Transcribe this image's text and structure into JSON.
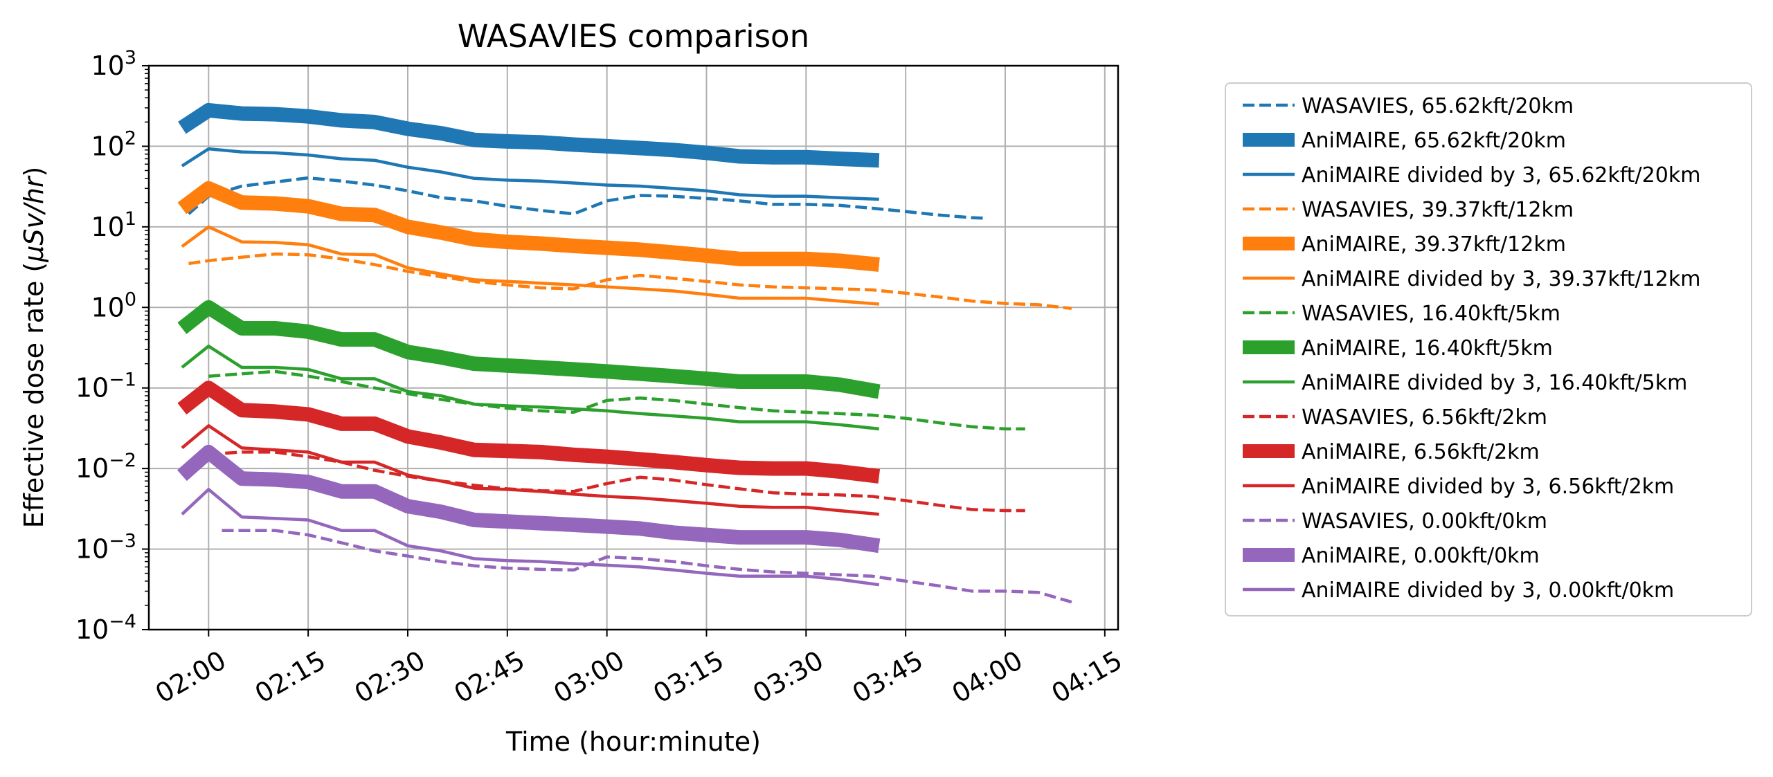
{
  "chart_data": {
    "type": "line",
    "title": "WASAVIES comparison",
    "xlabel": "Time (hour:minute)",
    "ylabel": "Effective dose rate (μSv/hr)",
    "ylabel_parts": [
      "Effective dose rate (",
      "μSv/hr",
      ")"
    ],
    "y_scale": "log",
    "ylim": [
      0.0001,
      1000
    ],
    "xlim": [
      "01:51",
      "04:17"
    ],
    "x_ticks": [
      "02:00",
      "02:15",
      "02:30",
      "02:45",
      "03:00",
      "03:15",
      "03:30",
      "03:45",
      "04:00",
      "04:15"
    ],
    "y_ticks": [
      {
        "value": 1000,
        "mantissa": "10",
        "exp": "3"
      },
      {
        "value": 100,
        "mantissa": "10",
        "exp": "2"
      },
      {
        "value": 10,
        "mantissa": "10",
        "exp": "1"
      },
      {
        "value": 1,
        "mantissa": "10",
        "exp": "0"
      },
      {
        "value": 0.1,
        "mantissa": "10",
        "exp": "−1"
      },
      {
        "value": 0.01,
        "mantissa": "10",
        "exp": "−2"
      },
      {
        "value": 0.001,
        "mantissa": "10",
        "exp": "−3"
      },
      {
        "value": 0.0001,
        "mantissa": "10",
        "exp": "−4"
      }
    ],
    "grid": true,
    "legend_position": "outside right",
    "series": [
      {
        "name": "WASAVIES, 65.62kft/20km",
        "color": "#1f77b4",
        "style": "dashed",
        "x": [
          "01:57",
          "02:00",
          "02:05",
          "02:10",
          "02:15",
          "02:20",
          "02:25",
          "02:30",
          "02:35",
          "02:40",
          "02:45",
          "02:50",
          "02:55",
          "03:00",
          "03:05",
          "03:10",
          "03:15",
          "03:20",
          "03:25",
          "03:30",
          "03:35",
          "03:40",
          "03:45",
          "03:50",
          "03:55",
          "03:57"
        ],
        "y": [
          14.5,
          24,
          32,
          36,
          40.5,
          37,
          33,
          28,
          23,
          21,
          18,
          16,
          14.5,
          21,
          24.5,
          24,
          22.5,
          21,
          19,
          19,
          18.5,
          17,
          15.5,
          14,
          13,
          12.8
        ]
      },
      {
        "name": "AniMAIRE, 65.62kft/20km",
        "color": "#1f77b4",
        "style": "thick",
        "x": [
          "01:56",
          "02:00",
          "02:05",
          "02:10",
          "02:15",
          "02:20",
          "02:25",
          "02:30",
          "02:35",
          "02:40",
          "02:45",
          "02:50",
          "02:55",
          "03:00",
          "03:05",
          "03:10",
          "03:15",
          "03:20",
          "03:25",
          "03:30",
          "03:35",
          "03:41"
        ],
        "y": [
          170,
          280,
          255,
          250,
          235,
          210,
          200,
          165,
          145,
          120,
          115,
          112,
          105,
          100,
          95,
          90,
          83,
          75,
          73,
          73,
          70,
          67
        ]
      },
      {
        "name": "AniMAIRE divided by 3, 65.62kft/20km",
        "color": "#1f77b4",
        "style": "solid",
        "x": [
          "01:56",
          "02:00",
          "02:05",
          "02:10",
          "02:15",
          "02:20",
          "02:25",
          "02:30",
          "02:35",
          "02:40",
          "02:45",
          "02:50",
          "02:55",
          "03:00",
          "03:05",
          "03:10",
          "03:15",
          "03:20",
          "03:25",
          "03:30",
          "03:35",
          "03:41"
        ],
        "y": [
          57,
          93,
          85,
          83,
          78,
          70,
          67,
          55,
          48,
          40,
          38,
          37,
          35,
          33,
          32,
          30,
          28,
          25,
          24,
          24,
          23,
          22
        ]
      },
      {
        "name": "WASAVIES, 39.37kft/12km",
        "color": "#ff7f0e",
        "style": "dashed",
        "x": [
          "01:57",
          "02:00",
          "02:05",
          "02:10",
          "02:15",
          "02:20",
          "02:25",
          "02:30",
          "02:35",
          "02:40",
          "02:45",
          "02:50",
          "02:55",
          "03:00",
          "03:05",
          "03:10",
          "03:15",
          "03:20",
          "03:25",
          "03:30",
          "03:35",
          "03:40",
          "03:45",
          "03:50",
          "03:55",
          "04:00",
          "04:05",
          "04:10"
        ],
        "y": [
          3.5,
          3.8,
          4.2,
          4.6,
          4.5,
          4.0,
          3.4,
          2.8,
          2.4,
          2.1,
          1.9,
          1.75,
          1.7,
          2.2,
          2.5,
          2.3,
          2.1,
          1.9,
          1.8,
          1.75,
          1.7,
          1.65,
          1.5,
          1.35,
          1.2,
          1.12,
          1.08,
          0.97
        ]
      },
      {
        "name": "AniMAIRE, 39.37kft/12km",
        "color": "#ff7f0e",
        "style": "thick",
        "x": [
          "01:56",
          "02:00",
          "02:05",
          "02:10",
          "02:15",
          "02:20",
          "02:25",
          "02:30",
          "02:35",
          "02:40",
          "02:45",
          "02:50",
          "02:55",
          "03:00",
          "03:05",
          "03:10",
          "03:15",
          "03:20",
          "03:25",
          "03:30",
          "03:35",
          "03:41"
        ],
        "y": [
          17,
          30,
          20,
          19.5,
          18,
          14.5,
          14,
          10,
          8.5,
          7,
          6.5,
          6.2,
          5.8,
          5.5,
          5.2,
          4.8,
          4.4,
          4.0,
          4.0,
          4.0,
          3.8,
          3.4
        ]
      },
      {
        "name": "AniMAIRE divided by 3, 39.37kft/12km",
        "color": "#ff7f0e",
        "style": "solid",
        "x": [
          "01:56",
          "02:00",
          "02:05",
          "02:10",
          "02:15",
          "02:20",
          "02:25",
          "02:30",
          "02:35",
          "02:40",
          "02:45",
          "02:50",
          "02:55",
          "03:00",
          "03:05",
          "03:10",
          "03:15",
          "03:20",
          "03:25",
          "03:30",
          "03:35",
          "03:41"
        ],
        "y": [
          5.7,
          10,
          6.5,
          6.4,
          6,
          4.6,
          4.5,
          3.1,
          2.6,
          2.2,
          2.1,
          2.0,
          1.9,
          1.8,
          1.7,
          1.6,
          1.45,
          1.3,
          1.3,
          1.3,
          1.2,
          1.1
        ]
      },
      {
        "name": "WASAVIES, 16.40kft/5km",
        "color": "#2ca02c",
        "style": "dashed",
        "x": [
          "02:00",
          "02:05",
          "02:10",
          "02:15",
          "02:20",
          "02:25",
          "02:30",
          "02:35",
          "02:40",
          "02:45",
          "02:50",
          "02:55",
          "03:00",
          "03:05",
          "03:10",
          "03:15",
          "03:20",
          "03:25",
          "03:30",
          "03:35",
          "03:40",
          "03:45",
          "03:50",
          "03:55",
          "04:00",
          "04:03"
        ],
        "y": [
          0.14,
          0.15,
          0.16,
          0.14,
          0.12,
          0.1,
          0.085,
          0.072,
          0.063,
          0.056,
          0.052,
          0.05,
          0.07,
          0.075,
          0.07,
          0.063,
          0.057,
          0.052,
          0.05,
          0.048,
          0.046,
          0.042,
          0.037,
          0.033,
          0.031,
          0.031
        ]
      },
      {
        "name": "AniMAIRE, 16.40kft/5km",
        "color": "#2ca02c",
        "style": "thick",
        "x": [
          "01:56",
          "02:00",
          "02:05",
          "02:10",
          "02:15",
          "02:20",
          "02:25",
          "02:30",
          "02:35",
          "02:40",
          "02:45",
          "02:50",
          "02:55",
          "03:00",
          "03:05",
          "03:10",
          "03:15",
          "03:20",
          "03:25",
          "03:30",
          "03:35",
          "03:41"
        ],
        "y": [
          0.55,
          1.0,
          0.55,
          0.55,
          0.5,
          0.4,
          0.4,
          0.28,
          0.24,
          0.2,
          0.19,
          0.18,
          0.17,
          0.16,
          0.15,
          0.14,
          0.13,
          0.12,
          0.12,
          0.12,
          0.11,
          0.09
        ]
      },
      {
        "name": "AniMAIRE divided by 3, 16.40kft/5km",
        "color": "#2ca02c",
        "style": "solid",
        "x": [
          "01:56",
          "02:00",
          "02:05",
          "02:10",
          "02:15",
          "02:20",
          "02:25",
          "02:30",
          "02:35",
          "02:40",
          "02:45",
          "02:50",
          "02:55",
          "03:00",
          "03:05",
          "03:10",
          "03:15",
          "03:20",
          "03:25",
          "03:30",
          "03:35",
          "03:41"
        ],
        "y": [
          0.18,
          0.33,
          0.18,
          0.18,
          0.17,
          0.13,
          0.13,
          0.09,
          0.08,
          0.063,
          0.06,
          0.058,
          0.055,
          0.052,
          0.048,
          0.045,
          0.042,
          0.038,
          0.038,
          0.038,
          0.035,
          0.031
        ]
      },
      {
        "name": "WASAVIES, 6.56kft/2km",
        "color": "#d62728",
        "style": "dashed",
        "x": [
          "02:00",
          "02:05",
          "02:10",
          "02:15",
          "02:20",
          "02:25",
          "02:30",
          "02:35",
          "02:40",
          "02:45",
          "02:50",
          "02:55",
          "03:00",
          "03:05",
          "03:10",
          "03:15",
          "03:20",
          "03:25",
          "03:30",
          "03:35",
          "03:40",
          "03:45",
          "03:50",
          "03:55",
          "04:00",
          "04:03"
        ],
        "y": [
          0.015,
          0.016,
          0.016,
          0.014,
          0.012,
          0.0095,
          0.008,
          0.007,
          0.0062,
          0.0056,
          0.0053,
          0.0052,
          0.0065,
          0.0078,
          0.0072,
          0.0063,
          0.0056,
          0.005,
          0.0048,
          0.0047,
          0.0045,
          0.004,
          0.0035,
          0.0031,
          0.003,
          0.003
        ]
      },
      {
        "name": "AniMAIRE, 6.56kft/2km",
        "color": "#d62728",
        "style": "thick",
        "x": [
          "01:56",
          "02:00",
          "02:05",
          "02:10",
          "02:15",
          "02:20",
          "02:25",
          "02:30",
          "02:35",
          "02:40",
          "02:45",
          "02:50",
          "02:55",
          "03:00",
          "03:05",
          "03:10",
          "03:15",
          "03:20",
          "03:25",
          "03:30",
          "03:35",
          "03:41"
        ],
        "y": [
          0.055,
          0.1,
          0.053,
          0.051,
          0.047,
          0.036,
          0.036,
          0.025,
          0.021,
          0.017,
          0.0165,
          0.016,
          0.0148,
          0.014,
          0.013,
          0.012,
          0.011,
          0.0102,
          0.01,
          0.01,
          0.0092,
          0.008
        ]
      },
      {
        "name": "AniMAIRE divided by 3, 6.56kft/2km",
        "color": "#d62728",
        "style": "solid",
        "x": [
          "01:56",
          "02:00",
          "02:05",
          "02:10",
          "02:15",
          "02:20",
          "02:25",
          "02:30",
          "02:35",
          "02:40",
          "02:45",
          "02:50",
          "02:55",
          "03:00",
          "03:05",
          "03:10",
          "03:15",
          "03:20",
          "03:25",
          "03:30",
          "03:35",
          "03:41"
        ],
        "y": [
          0.018,
          0.034,
          0.018,
          0.017,
          0.016,
          0.012,
          0.012,
          0.0083,
          0.007,
          0.0057,
          0.0055,
          0.0052,
          0.0048,
          0.0045,
          0.0043,
          0.004,
          0.0037,
          0.0034,
          0.0033,
          0.0033,
          0.003,
          0.0027
        ]
      },
      {
        "name": "WASAVIES, 0.00kft/0km",
        "color": "#9467bd",
        "style": "dashed",
        "x": [
          "02:02",
          "02:05",
          "02:10",
          "02:15",
          "02:20",
          "02:25",
          "02:30",
          "02:35",
          "02:40",
          "02:45",
          "02:50",
          "02:55",
          "03:00",
          "03:05",
          "03:10",
          "03:15",
          "03:20",
          "03:25",
          "03:30",
          "03:35",
          "03:40",
          "03:45",
          "03:50",
          "03:55",
          "04:00",
          "04:05",
          "04:10"
        ],
        "y": [
          0.0017,
          0.0017,
          0.0017,
          0.0015,
          0.0012,
          0.00095,
          0.00082,
          0.0007,
          0.00062,
          0.00058,
          0.00056,
          0.00055,
          0.0008,
          0.00076,
          0.0007,
          0.00062,
          0.00056,
          0.00052,
          0.0005,
          0.00048,
          0.00046,
          0.0004,
          0.00035,
          0.0003,
          0.0003,
          0.00029,
          0.00022
        ]
      },
      {
        "name": "AniMAIRE, 0.00kft/0km",
        "color": "#9467bd",
        "style": "thick",
        "x": [
          "01:56",
          "02:00",
          "02:05",
          "02:10",
          "02:15",
          "02:20",
          "02:25",
          "02:30",
          "02:35",
          "02:40",
          "02:45",
          "02:50",
          "02:55",
          "03:00",
          "03:05",
          "03:10",
          "03:15",
          "03:20",
          "03:25",
          "03:30",
          "03:35",
          "03:41"
        ],
        "y": [
          0.0082,
          0.016,
          0.0075,
          0.0073,
          0.0068,
          0.0052,
          0.0052,
          0.0034,
          0.0029,
          0.0023,
          0.0022,
          0.0021,
          0.002,
          0.0019,
          0.0018,
          0.0016,
          0.0015,
          0.0014,
          0.0014,
          0.0014,
          0.0013,
          0.0011
        ]
      },
      {
        "name": "AniMAIRE divided by 3, 0.00kft/0km",
        "color": "#9467bd",
        "style": "solid",
        "x": [
          "01:56",
          "02:00",
          "02:05",
          "02:10",
          "02:15",
          "02:20",
          "02:25",
          "02:30",
          "02:35",
          "02:40",
          "02:45",
          "02:50",
          "02:55",
          "03:00",
          "03:05",
          "03:10",
          "03:15",
          "03:20",
          "03:25",
          "03:30",
          "03:35",
          "03:41"
        ],
        "y": [
          0.0027,
          0.0055,
          0.0025,
          0.0024,
          0.0023,
          0.0017,
          0.0017,
          0.0011,
          0.00095,
          0.00076,
          0.00072,
          0.0007,
          0.00066,
          0.00063,
          0.0006,
          0.00055,
          0.0005,
          0.00046,
          0.00046,
          0.00046,
          0.00042,
          0.00036
        ]
      }
    ]
  }
}
